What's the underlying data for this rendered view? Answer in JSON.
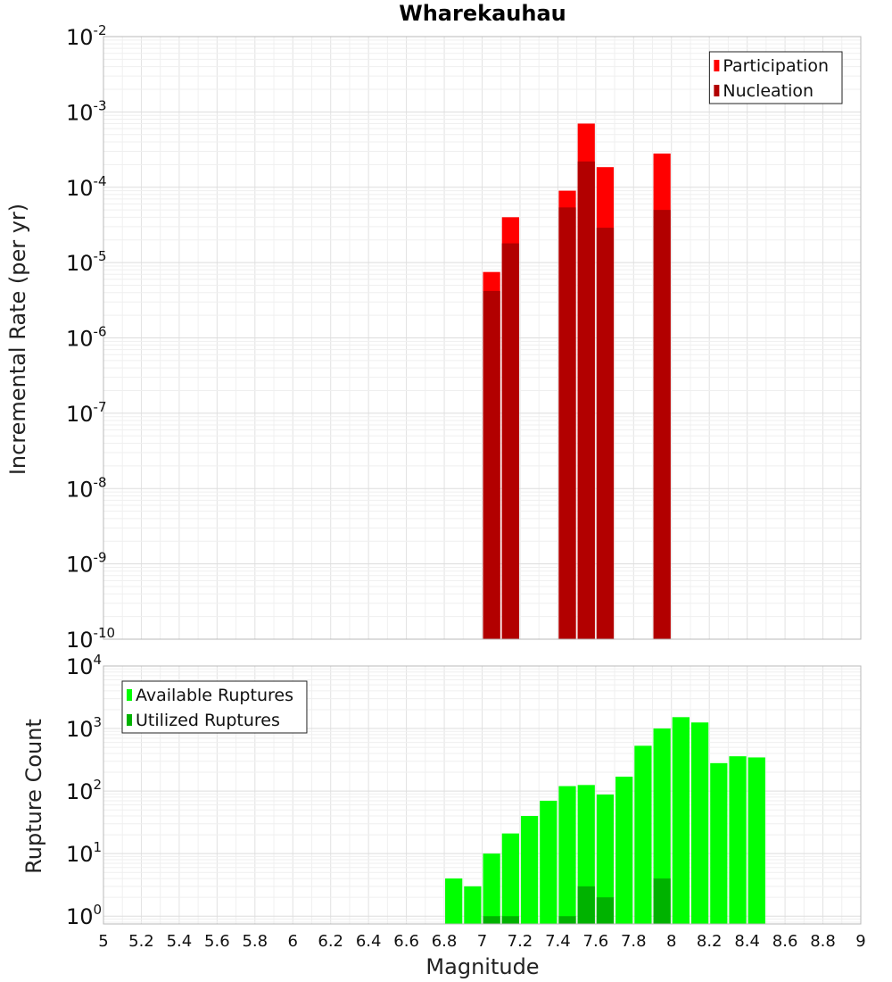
{
  "chart_data": {
    "title": "Wharekauhau",
    "xlabel": "Magnitude",
    "x_ticks": [
      "5",
      "5.2",
      "5.4",
      "5.6",
      "5.8",
      "6",
      "6.2",
      "6.4",
      "6.6",
      "6.8",
      "7",
      "7.2",
      "7.4",
      "7.6",
      "7.8",
      "8",
      "8.2",
      "8.4",
      "8.6",
      "8.8",
      "9"
    ],
    "xlim": [
      5,
      9
    ],
    "bin_width": 0.1,
    "panels": [
      {
        "type": "bar",
        "ylabel": "Incremental Rate (per yr)",
        "yscale": "log",
        "ylim": [
          1e-10,
          0.01
        ],
        "y_tick_exponents": [
          -10,
          -9,
          -8,
          -7,
          -6,
          -5,
          -4,
          -3,
          -2
        ],
        "legend_position": "top-right",
        "series": [
          {
            "name": "Participation",
            "color": "#ff0000",
            "points": [
              {
                "x": 7.05,
                "y": 7.5e-06
              },
              {
                "x": 7.15,
                "y": 4e-05
              },
              {
                "x": 7.45,
                "y": 9e-05
              },
              {
                "x": 7.55,
                "y": 0.0007
              },
              {
                "x": 7.65,
                "y": 0.000185
              },
              {
                "x": 7.95,
                "y": 0.00028
              }
            ]
          },
          {
            "name": "Nucleation",
            "color": "#b20000",
            "points": [
              {
                "x": 7.05,
                "y": 4.2e-06
              },
              {
                "x": 7.15,
                "y": 1.8e-05
              },
              {
                "x": 7.45,
                "y": 5.4e-05
              },
              {
                "x": 7.55,
                "y": 0.00022
              },
              {
                "x": 7.65,
                "y": 2.9e-05
              },
              {
                "x": 7.95,
                "y": 5e-05
              }
            ]
          }
        ]
      },
      {
        "type": "bar",
        "ylabel": "Rupture Count",
        "yscale": "log",
        "ylim": [
          0.75,
          10000
        ],
        "y_tick_exponents": [
          0,
          1,
          2,
          3,
          4
        ],
        "legend_position": "top-left",
        "series": [
          {
            "name": "Available Ruptures",
            "color": "#00ff00",
            "points": [
              {
                "x": 6.85,
                "y": 4
              },
              {
                "x": 6.95,
                "y": 3
              },
              {
                "x": 7.05,
                "y": 10
              },
              {
                "x": 7.15,
                "y": 21
              },
              {
                "x": 7.25,
                "y": 40
              },
              {
                "x": 7.35,
                "y": 70
              },
              {
                "x": 7.45,
                "y": 120
              },
              {
                "x": 7.55,
                "y": 125
              },
              {
                "x": 7.65,
                "y": 88
              },
              {
                "x": 7.75,
                "y": 170
              },
              {
                "x": 7.85,
                "y": 530
              },
              {
                "x": 7.95,
                "y": 1000
              },
              {
                "x": 8.05,
                "y": 1520
              },
              {
                "x": 8.15,
                "y": 1250
              },
              {
                "x": 8.25,
                "y": 280
              },
              {
                "x": 8.35,
                "y": 360
              },
              {
                "x": 8.45,
                "y": 345
              }
            ]
          },
          {
            "name": "Utilized Ruptures",
            "color": "#00b200",
            "points": [
              {
                "x": 7.05,
                "y": 1
              },
              {
                "x": 7.15,
                "y": 1
              },
              {
                "x": 7.45,
                "y": 1
              },
              {
                "x": 7.55,
                "y": 3
              },
              {
                "x": 7.65,
                "y": 2
              },
              {
                "x": 7.95,
                "y": 4
              }
            ]
          }
        ]
      }
    ]
  }
}
